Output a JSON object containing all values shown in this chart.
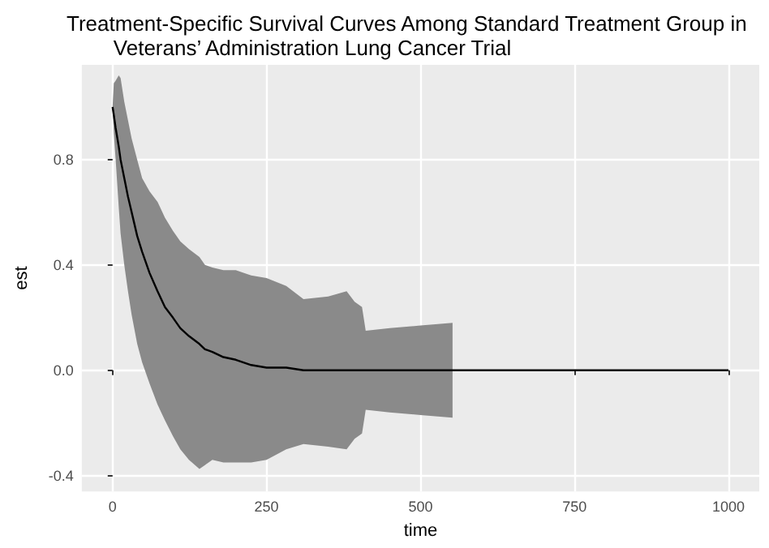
{
  "chart_data": {
    "type": "line",
    "title": "Treatment-Specific Survival Curves Among Standard Treatment Group in\n        Veterans’ Administration Lung Cancer Trial",
    "xlabel": "time",
    "ylabel": "est",
    "xlim": [
      -50,
      1050
    ],
    "xticks": [
      0,
      250,
      500,
      750,
      1000
    ],
    "ylim": [
      -0.46,
      1.16
    ],
    "yticks": [
      -0.4,
      {
        "value": 0,
        "label": "0.0"
      },
      0.4,
      0.8
    ],
    "grid": true,
    "marker": "none",
    "line_style": "solid",
    "series": [
      {
        "color": "#000000",
        "x": [
          0,
          2,
          5,
          10,
          13,
          19,
          25,
          31,
          40,
          48,
          60,
          73,
          85,
          98,
          110,
          124,
          141,
          150,
          162,
          180,
          200,
          225,
          250,
          282,
          310,
          350,
          380,
          393,
          405,
          411,
          450,
          500,
          552,
          600,
          700,
          800,
          900,
          1000
        ],
        "values": [
          1.0,
          0.97,
          0.92,
          0.85,
          0.8,
          0.73,
          0.66,
          0.6,
          0.51,
          0.45,
          0.37,
          0.3,
          0.24,
          0.2,
          0.16,
          0.13,
          0.1,
          0.08,
          0.07,
          0.05,
          0.04,
          0.02,
          0.01,
          0.01,
          0,
          0,
          0,
          0,
          0,
          0,
          0,
          0,
          0,
          0,
          0,
          0,
          0,
          0
        ],
        "upper": [
          1.0,
          1.09,
          1.1,
          1.12,
          1.11,
          1.02,
          0.95,
          0.88,
          0.8,
          0.73,
          0.68,
          0.64,
          0.58,
          0.53,
          0.49,
          0.46,
          0.43,
          0.4,
          0.39,
          0.38,
          0.38,
          0.36,
          0.35,
          0.32,
          0.27,
          0.28,
          0.3,
          0.26,
          0.24,
          0.15,
          0.16,
          0.17,
          0.18,
          null,
          null,
          null,
          null,
          null
        ],
        "lower": [
          1.0,
          0.9,
          0.8,
          0.62,
          0.52,
          0.4,
          0.3,
          0.21,
          0.1,
          0.03,
          -0.05,
          -0.13,
          -0.19,
          -0.25,
          -0.3,
          -0.34,
          -0.375,
          -0.36,
          -0.34,
          -0.35,
          -0.35,
          -0.35,
          -0.34,
          -0.3,
          -0.28,
          -0.29,
          -0.3,
          -0.26,
          -0.24,
          -0.15,
          -0.16,
          -0.17,
          -0.18,
          null,
          null,
          null,
          null,
          null
        ]
      }
    ]
  }
}
